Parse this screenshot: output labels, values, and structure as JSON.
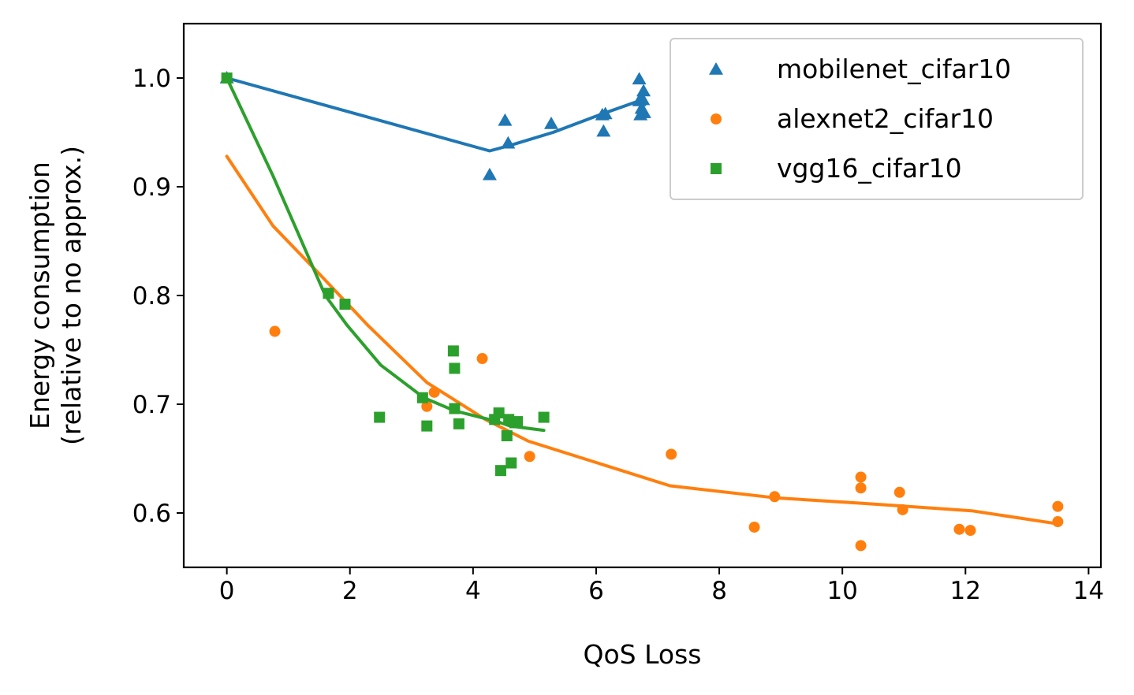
{
  "chart_data": {
    "type": "scatter",
    "title": "",
    "xlabel": "QoS Loss",
    "ylabel_lines": [
      "Energy consumption",
      "(relative to no approx.)"
    ],
    "xlim": [
      -0.7,
      14.2
    ],
    "ylim": [
      0.55,
      1.05
    ],
    "xticks": [
      0,
      2,
      4,
      6,
      8,
      10,
      12,
      14
    ],
    "yticks": [
      0.6,
      0.7,
      0.8,
      0.9,
      1.0
    ],
    "xtick_labels": [
      "0",
      "2",
      "4",
      "6",
      "8",
      "10",
      "12",
      "14"
    ],
    "ytick_labels": [
      "0.6",
      "0.7",
      "0.8",
      "0.9",
      "1.0"
    ],
    "grid": false,
    "legend_position": "top-right",
    "series": [
      {
        "name": "mobilenet_cifar10",
        "color": "#1f77b4",
        "marker": "triangle",
        "points": [
          [
            0.0,
            1.0
          ],
          [
            4.27,
            0.911
          ],
          [
            4.52,
            0.961
          ],
          [
            4.57,
            0.94
          ],
          [
            5.27,
            0.958
          ],
          [
            6.1,
            0.966
          ],
          [
            6.12,
            0.951
          ],
          [
            6.15,
            0.967
          ],
          [
            6.7,
            0.999
          ],
          [
            6.7,
            0.979
          ],
          [
            6.72,
            0.966
          ],
          [
            6.74,
            0.972
          ],
          [
            6.76,
            0.98
          ],
          [
            6.77,
            0.988
          ],
          [
            6.78,
            0.968
          ]
        ],
        "fit": [
          [
            0.0,
            1.0
          ],
          [
            4.27,
            0.933
          ],
          [
            4.6,
            0.938
          ],
          [
            5.3,
            0.95
          ],
          [
            6.1,
            0.967
          ],
          [
            6.75,
            0.98
          ]
        ]
      },
      {
        "name": "alexnet2_cifar10",
        "color": "#ff7f0e",
        "marker": "circle",
        "points": [
          [
            0.78,
            0.767
          ],
          [
            3.25,
            0.698
          ],
          [
            3.37,
            0.711
          ],
          [
            4.15,
            0.742
          ],
          [
            4.92,
            0.652
          ],
          [
            7.22,
            0.654
          ],
          [
            8.57,
            0.587
          ],
          [
            8.9,
            0.615
          ],
          [
            10.3,
            0.633
          ],
          [
            10.3,
            0.623
          ],
          [
            10.3,
            0.57
          ],
          [
            10.93,
            0.619
          ],
          [
            10.98,
            0.603
          ],
          [
            11.9,
            0.585
          ],
          [
            12.08,
            0.584
          ],
          [
            13.5,
            0.606
          ],
          [
            13.5,
            0.592
          ]
        ],
        "fit": [
          [
            0.0,
            0.928
          ],
          [
            0.75,
            0.864
          ],
          [
            1.5,
            0.82
          ],
          [
            2.3,
            0.772
          ],
          [
            3.25,
            0.72
          ],
          [
            4.2,
            0.686
          ],
          [
            4.9,
            0.666
          ],
          [
            7.2,
            0.625
          ],
          [
            8.9,
            0.614
          ],
          [
            10.3,
            0.609
          ],
          [
            12.1,
            0.602
          ],
          [
            13.5,
            0.59
          ]
        ]
      },
      {
        "name": "vgg16_cifar10",
        "color": "#2ca02c",
        "marker": "square",
        "points": [
          [
            0.0,
            1.0
          ],
          [
            1.65,
            0.802
          ],
          [
            1.92,
            0.792
          ],
          [
            2.48,
            0.688
          ],
          [
            3.18,
            0.706
          ],
          [
            3.25,
            0.68
          ],
          [
            3.68,
            0.749
          ],
          [
            3.7,
            0.733
          ],
          [
            3.7,
            0.696
          ],
          [
            3.77,
            0.682
          ],
          [
            4.35,
            0.686
          ],
          [
            4.42,
            0.692
          ],
          [
            4.45,
            0.639
          ],
          [
            4.55,
            0.671
          ],
          [
            4.58,
            0.686
          ],
          [
            4.62,
            0.646
          ],
          [
            4.68,
            0.683
          ],
          [
            4.72,
            0.684
          ],
          [
            5.15,
            0.688
          ]
        ],
        "fit": [
          [
            0.0,
            1.0
          ],
          [
            0.75,
            0.91
          ],
          [
            1.6,
            0.8
          ],
          [
            1.95,
            0.773
          ],
          [
            2.5,
            0.736
          ],
          [
            3.2,
            0.706
          ],
          [
            3.7,
            0.694
          ],
          [
            4.4,
            0.684
          ],
          [
            4.6,
            0.68
          ],
          [
            5.15,
            0.676
          ]
        ]
      }
    ]
  }
}
